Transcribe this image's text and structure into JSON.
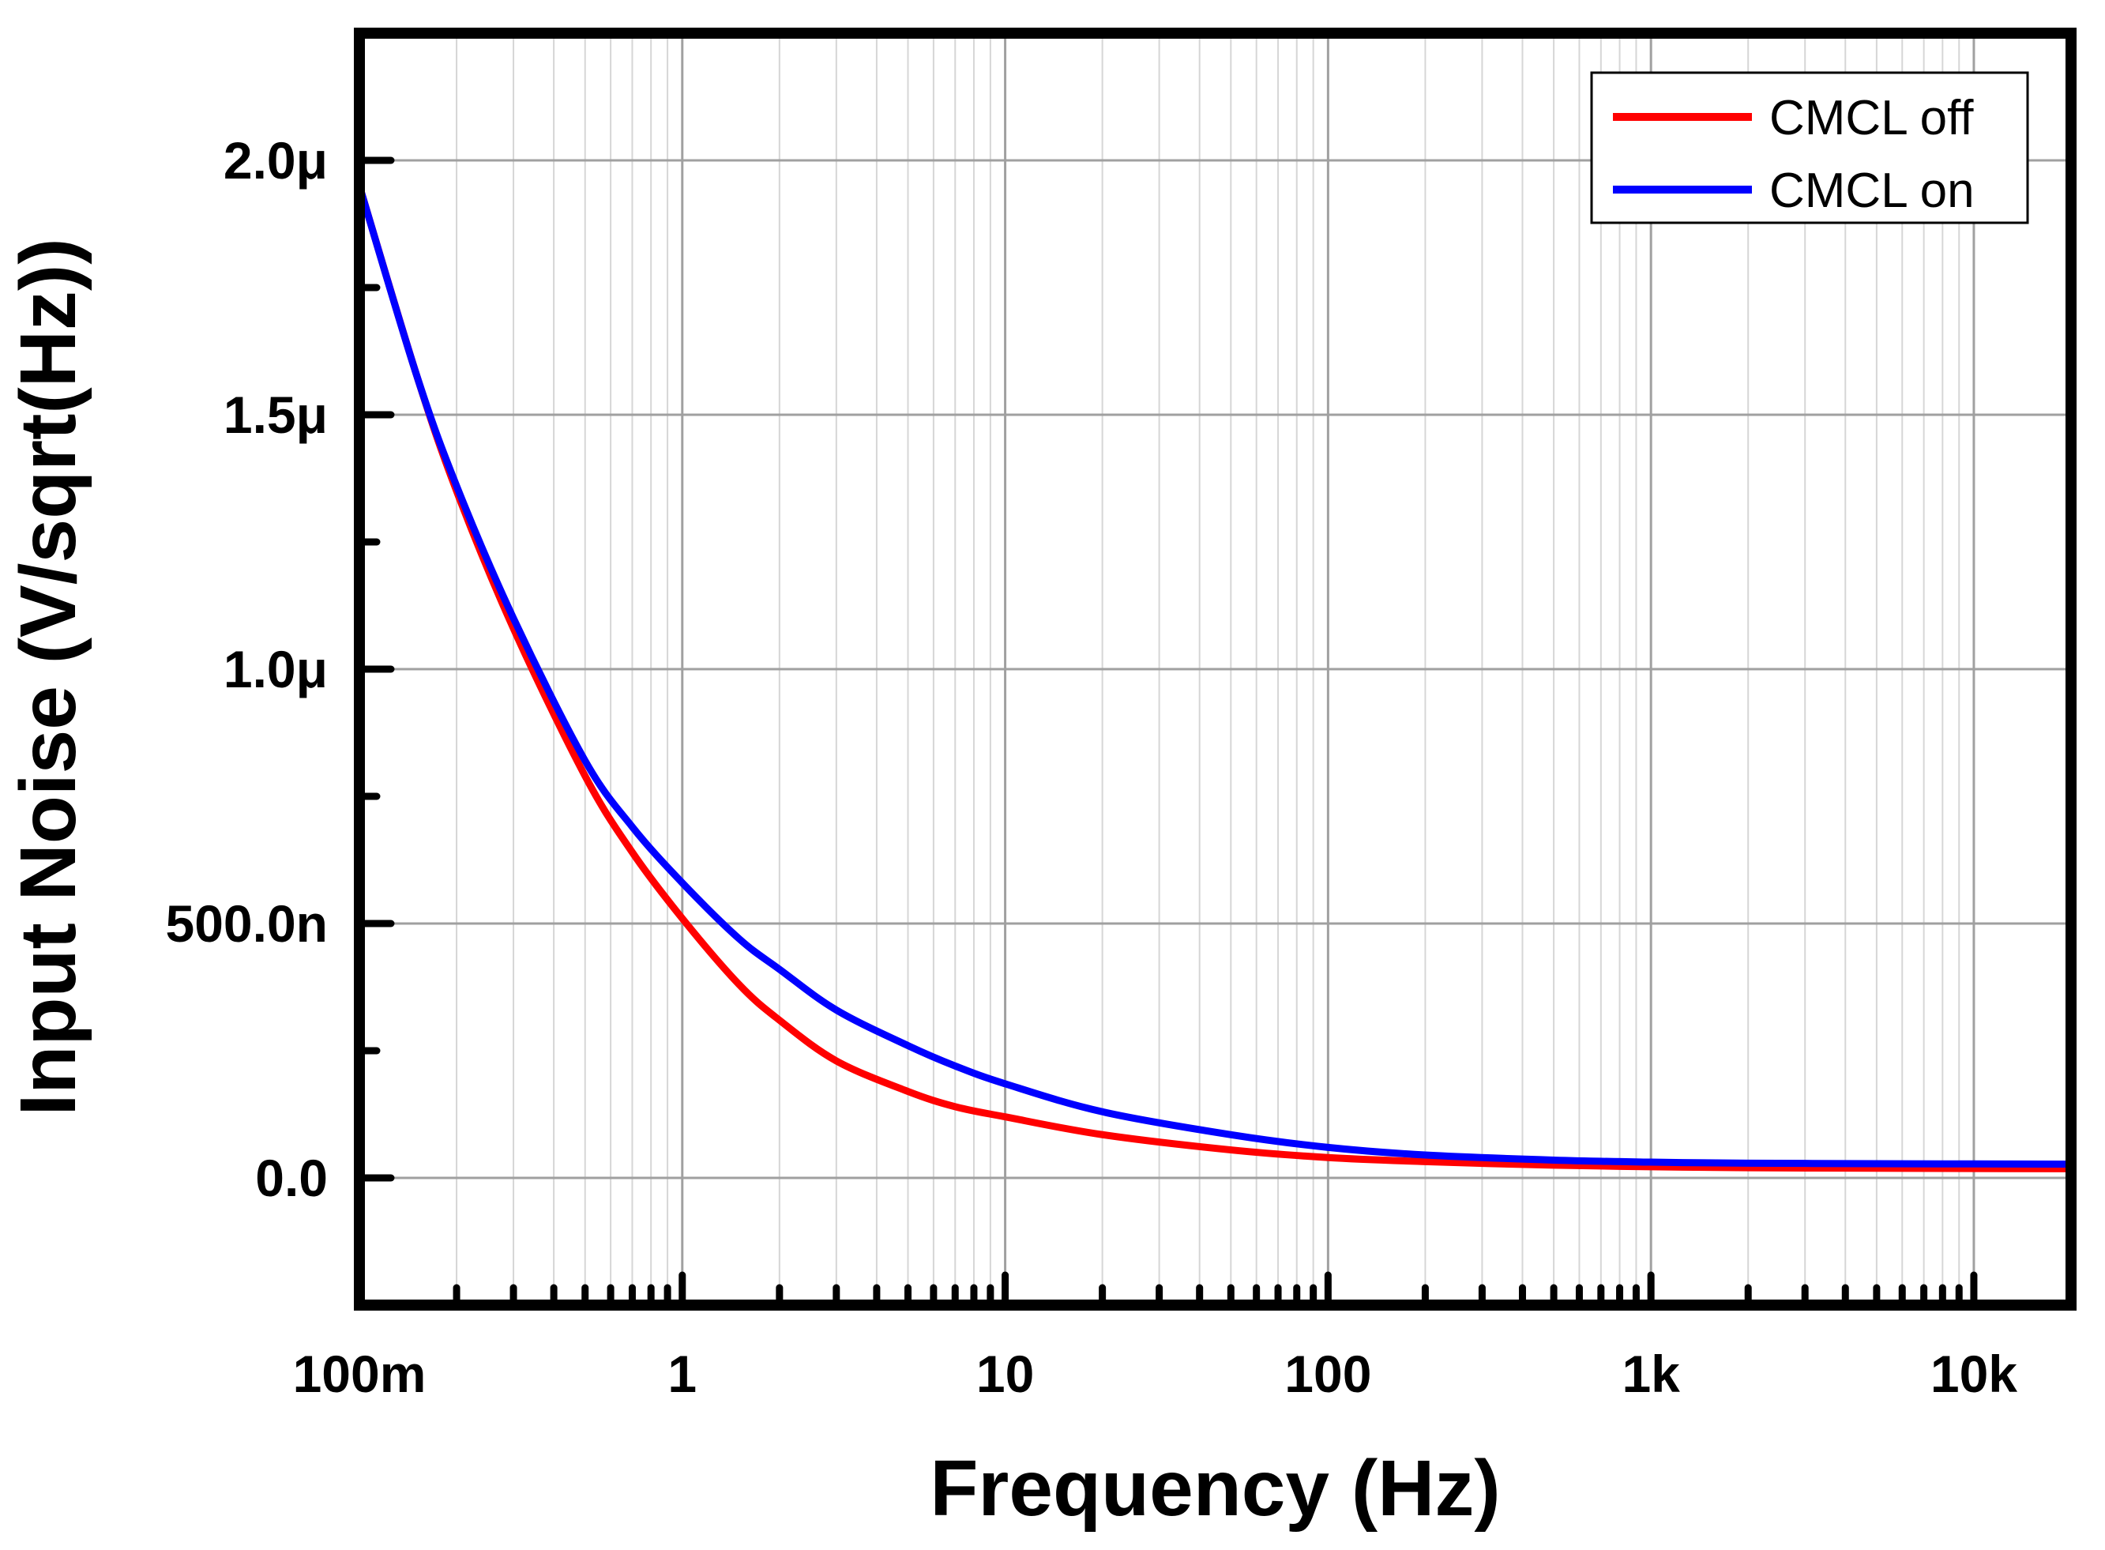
{
  "chart_data": {
    "type": "line",
    "title": "",
    "xlabel": "Frequency (Hz)",
    "ylabel": "Input Noise (V/sqrt(Hz))",
    "xscale": "log",
    "xlim": [
      0.1,
      20000
    ],
    "ylim": [
      -2.5e-07,
      2.25e-06
    ],
    "grid": true,
    "legend_position": "top-right",
    "x_ticks": [
      {
        "value": 0.1,
        "label": "100m"
      },
      {
        "value": 1,
        "label": "1"
      },
      {
        "value": 10,
        "label": "10"
      },
      {
        "value": 100,
        "label": "100"
      },
      {
        "value": 1000,
        "label": "1k"
      },
      {
        "value": 10000,
        "label": "10k"
      }
    ],
    "y_ticks": [
      {
        "value": 0,
        "label": "0.0"
      },
      {
        "value": 5e-07,
        "label": "500.0n"
      },
      {
        "value": 1e-06,
        "label": "1.0μ"
      },
      {
        "value": 1.5e-06,
        "label": "1.5μ"
      },
      {
        "value": 2e-06,
        "label": "2.0μ"
      }
    ],
    "x": [
      0.1,
      0.15,
      0.2,
      0.3,
      0.5,
      0.7,
      1,
      1.5,
      2,
      3,
      5,
      7,
      10,
      20,
      50,
      100,
      200,
      500,
      1000,
      2000,
      5000,
      10000,
      20000
    ],
    "series": [
      {
        "name": "CMCL off",
        "color": "#ff0000",
        "values": [
          1.95e-06,
          1.58e-06,
          1.35e-06,
          1.08e-06,
          7.9e-07,
          6.4e-07,
          5.1e-07,
          3.8e-07,
          3.1e-07,
          2.3e-07,
          1.7e-07,
          1.4e-07,
          1.2e-07,
          8.5e-08,
          5.5e-08,
          4e-08,
          3.2e-08,
          2.5e-08,
          2.2e-08,
          2e-08,
          1.9e-08,
          1.85e-08,
          1.8e-08
        ]
      },
      {
        "name": "CMCL on",
        "color": "#0000ff",
        "values": [
          1.95e-06,
          1.58e-06,
          1.36e-06,
          1.1e-06,
          8.2e-07,
          6.9e-07,
          5.8e-07,
          4.7e-07,
          4.1e-07,
          3.3e-07,
          2.6e-07,
          2.2e-07,
          1.85e-07,
          1.3e-07,
          8.5e-08,
          6e-08,
          4.5e-08,
          3.5e-08,
          3.1e-08,
          2.9e-08,
          2.8e-08,
          2.75e-08,
          2.7e-08
        ]
      }
    ]
  }
}
